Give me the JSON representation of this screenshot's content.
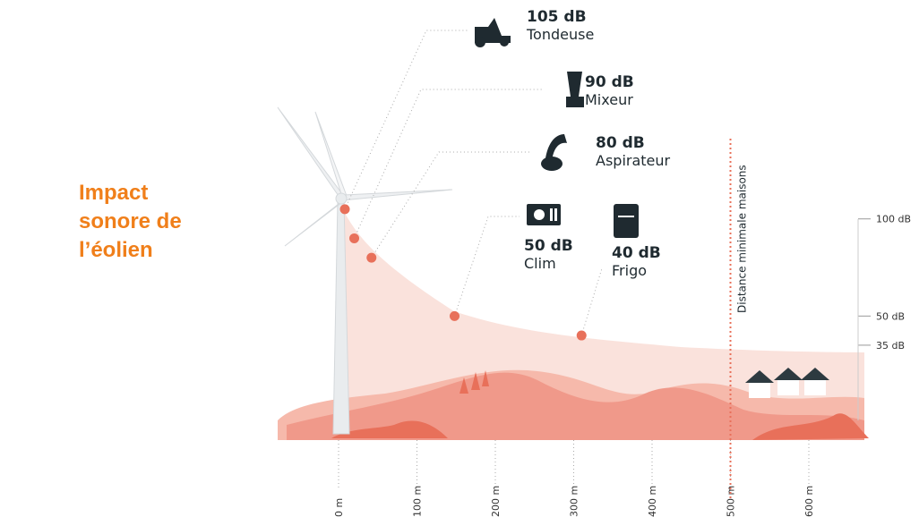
{
  "chart_data": {
    "type": "scatter",
    "title": "Impact sonore de l’éolien",
    "categories": [
      "Tondeuse",
      "Mixeur",
      "Aspirateur",
      "Clim",
      "Frigo"
    ],
    "x": [
      8,
      20,
      42,
      148,
      310
    ],
    "values": [
      105,
      90,
      80,
      50,
      40
    ],
    "value_labels": [
      "105 dB",
      "90 dB",
      "80 dB",
      "50 dB",
      "40 dB"
    ],
    "color": "#e8705a",
    "xlim": [
      0,
      680
    ],
    "xticks": [
      {
        "value": 0,
        "label": "0 m"
      },
      {
        "value": 100,
        "label": "100 m"
      },
      {
        "value": 200,
        "label": "200 m"
      },
      {
        "value": 300,
        "label": "300 m"
      },
      {
        "value": 400,
        "label": "400 m"
      },
      {
        "value": 500,
        "label": "500 m"
      },
      {
        "value": 600,
        "label": "600 m"
      }
    ],
    "ylim": [
      20,
      110
    ],
    "yticks": [
      {
        "value": 35,
        "label": "35 dB"
      },
      {
        "value": 50,
        "label": "50 dB"
      },
      {
        "value": 100,
        "label": "100 dB"
      }
    ],
    "annotation": {
      "value": 500,
      "label": "Distance minimale maisons"
    }
  }
}
